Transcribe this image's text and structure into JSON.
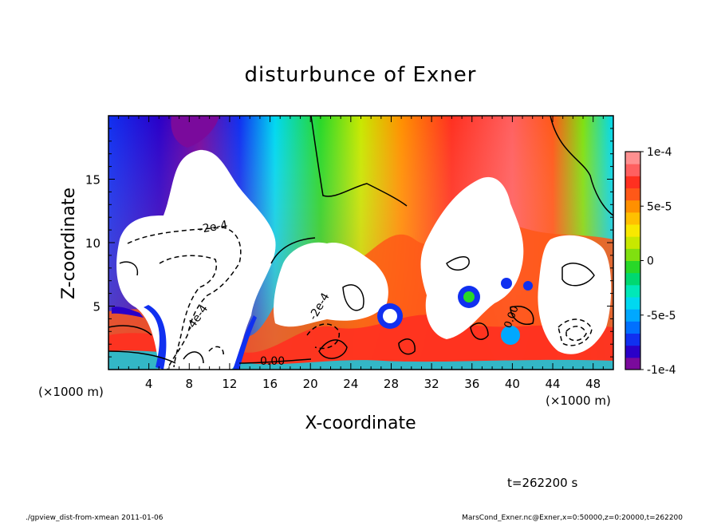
{
  "chart_data": {
    "type": "heatmap",
    "title": "disturbunce of Exner",
    "xlabel": "X-coordinate",
    "ylabel": "Z-coordinate",
    "x_unit_left": "(×1000 m)",
    "x_unit_right": "(×1000 m)",
    "xlim": [
      0,
      50
    ],
    "ylim": [
      0,
      20
    ],
    "x_ticks": [
      4,
      8,
      12,
      16,
      20,
      24,
      28,
      32,
      36,
      40,
      44,
      48
    ],
    "y_ticks": [
      5,
      10,
      15
    ],
    "colorbar": {
      "range": [
        -0.0001,
        0.0001
      ],
      "tick_labels": [
        {
          "value": 0.0001,
          "label": "1e-4"
        },
        {
          "value": 5e-05,
          "label": "5e-5"
        },
        {
          "value": 0,
          "label": "0"
        },
        {
          "value": -5e-05,
          "label": "-5e-5"
        },
        {
          "value": -0.0001,
          "label": "-1e-4"
        }
      ],
      "colors": [
        "#7a0a9c",
        "#2a00c8",
        "#1030f0",
        "#0070ff",
        "#00a8ff",
        "#00d8f0",
        "#00e8b8",
        "#00d870",
        "#28d828",
        "#80e010",
        "#c8e800",
        "#f8e800",
        "#ffc000",
        "#ff9000",
        "#ff5818",
        "#ff3020",
        "#ff6060",
        "#ff9090"
      ]
    },
    "contour_labels": [
      "-2e-4",
      "-4e-4",
      "-2e-4",
      "0.00",
      "0.00"
    ],
    "time_label": "t=262200 s"
  },
  "footer": {
    "left": "./gpview_dist-from-xmean  2011-01-06",
    "right": "MarsCond_Exner.nc@Exner,x=0:50000,z=0:20000,t=262200"
  }
}
